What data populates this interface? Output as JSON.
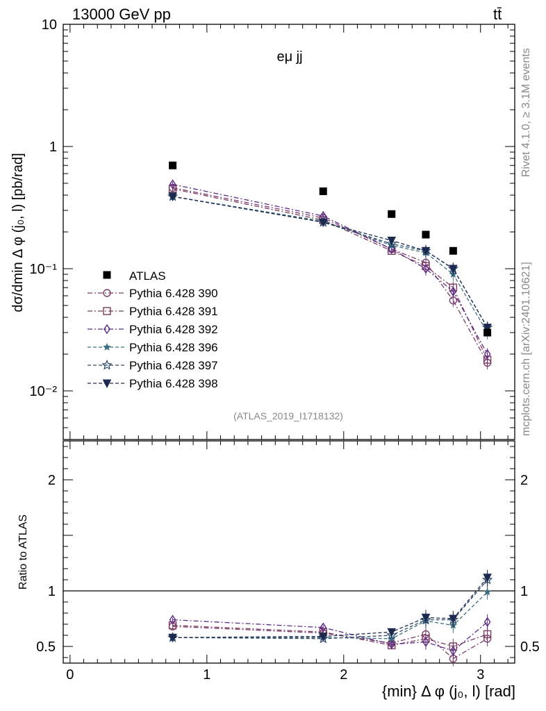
{
  "header": {
    "energy_label": "13000 GeV pp",
    "process_label": "tt̄"
  },
  "side": {
    "rivet_label": "Rivet 4.1.0, ≥ 3.1M events",
    "mcplots_label": "mcplots.cern.ch [arXiv:2401.10621]"
  },
  "chart_data": {
    "type": "scatter",
    "title": "eμ jj",
    "analysis_label": "(ATLAS_2019_I1718132)",
    "xlabel": "{min} Δ φ (j₀, l) [rad]",
    "ylabel_main": "dσ/dmin Δ φ (j₀, l) [pb/rad]",
    "ylabel_ratio": "Ratio to ATLAS",
    "xlim": [
      -0.05,
      3.25
    ],
    "ylim_main": [
      0.004,
      10
    ],
    "ylim_ratio": [
      0.35,
      2.35
    ],
    "x_ticks": [
      "0",
      "1",
      "2",
      "3"
    ],
    "y_ticks_main": [
      "10",
      "1",
      "10⁻¹",
      "10⁻²"
    ],
    "y_ticks_ratio": [
      "2",
      "1",
      "0.5"
    ],
    "x": [
      0.75,
      1.85,
      2.35,
      2.6,
      2.8,
      3.05
    ],
    "reference": {
      "name": "ATLAS",
      "values": [
        0.7,
        0.43,
        0.28,
        0.19,
        0.14,
        0.03
      ],
      "color": "#000000"
    },
    "series": [
      {
        "name": "Pythia 6.428 390",
        "marker": "circle",
        "dash": "7,3,2,3",
        "color": "#7a3b6e",
        "values": [
          0.46,
          0.26,
          0.145,
          0.112,
          0.055,
          0.017
        ],
        "ratio": [
          0.68,
          0.62,
          0.53,
          0.61,
          0.39,
          0.57
        ]
      },
      {
        "name": "Pythia 6.428 391",
        "marker": "square",
        "dash": "7,3,2,3",
        "color": "#7a3b5e",
        "values": [
          0.45,
          0.25,
          0.14,
          0.105,
          0.07,
          0.018
        ],
        "ratio": [
          0.69,
          0.63,
          0.51,
          0.57,
          0.5,
          0.61
        ]
      },
      {
        "name": "Pythia 6.428 392",
        "marker": "diamond",
        "dash": "7,3,2,3",
        "color": "#5b2a86",
        "values": [
          0.49,
          0.27,
          0.145,
          0.1,
          0.065,
          0.02
        ],
        "ratio": [
          0.74,
          0.67,
          0.52,
          0.54,
          0.46,
          0.72
        ]
      },
      {
        "name": "Pythia 6.428 396",
        "marker": "star",
        "dash": "5,3",
        "color": "#3e6f80",
        "values": [
          0.39,
          0.245,
          0.155,
          0.135,
          0.09,
          0.03
        ],
        "ratio": [
          0.58,
          0.58,
          0.57,
          0.73,
          0.69,
          0.99
        ]
      },
      {
        "name": "Pythia 6.428 397",
        "marker": "star-open",
        "dash": "5,3",
        "color": "#2d4a6a",
        "values": [
          0.39,
          0.24,
          0.16,
          0.14,
          0.1,
          0.033
        ],
        "ratio": [
          0.58,
          0.57,
          0.6,
          0.74,
          0.74,
          1.1
        ]
      },
      {
        "name": "Pythia 6.428 398",
        "marker": "triangle-down",
        "dash": "5,3",
        "color": "#1c2a50",
        "values": [
          0.39,
          0.24,
          0.17,
          0.14,
          0.1,
          0.033
        ],
        "ratio": [
          0.58,
          0.59,
          0.63,
          0.76,
          0.75,
          1.12
        ]
      }
    ]
  }
}
